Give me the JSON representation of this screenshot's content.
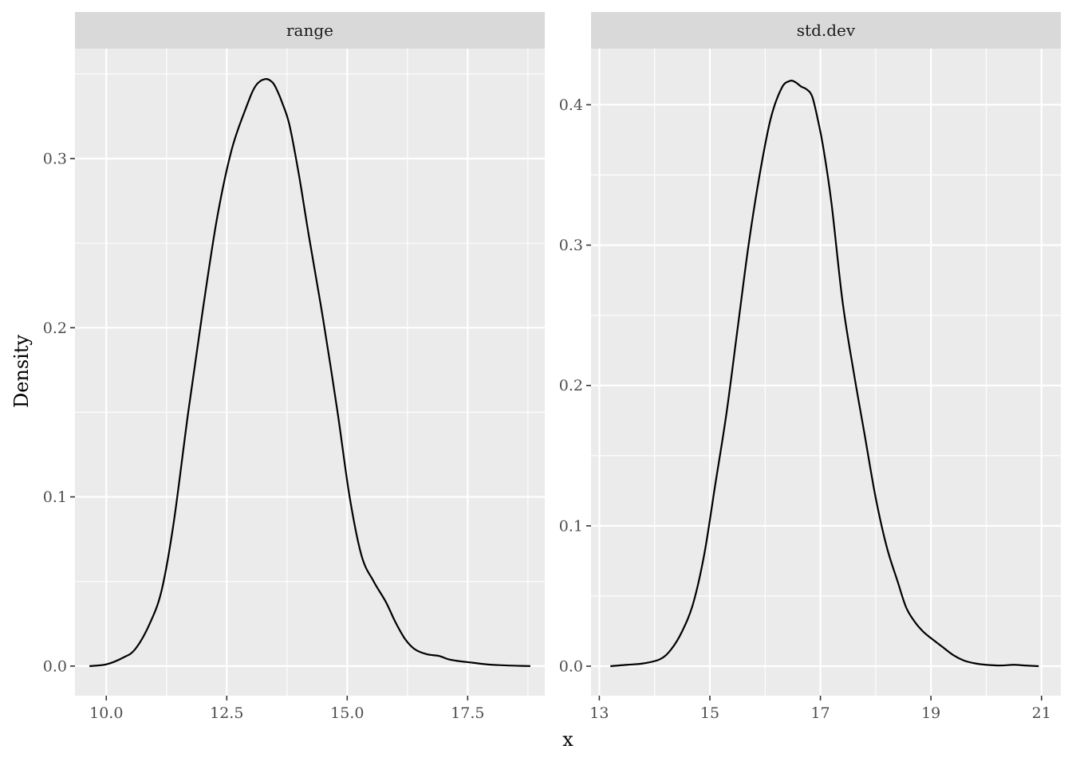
{
  "chart_data": {
    "type": "area",
    "xlabel": "x",
    "ylabel": "Density",
    "grid": true,
    "colors": {
      "panel_background": "#ebebeb",
      "strip_background": "#d9d9d9",
      "grid": "#ffffff",
      "line": "#000000"
    },
    "panels": [
      {
        "strip": "range",
        "xlim": [
          9.35,
          19.1
        ],
        "ylim": [
          -0.0175,
          0.365
        ],
        "x_ticks": [
          10.0,
          12.5,
          15.0,
          17.5
        ],
        "x_tick_labels": [
          "10.0",
          "12.5",
          "15.0",
          "17.5"
        ],
        "y_ticks": [
          0.0,
          0.1,
          0.2,
          0.3
        ],
        "y_tick_labels": [
          "0.0",
          "0.1",
          "0.2",
          "0.3"
        ],
        "series": [
          {
            "x": [
              9.65,
              10.0,
              10.35,
              10.6,
              10.9,
              11.15,
              11.4,
              11.7,
              12.0,
              12.3,
              12.6,
              12.9,
              13.1,
              13.3,
              13.45,
              13.55,
              13.65,
              13.8,
              14.0,
              14.2,
              14.5,
              14.8,
              15.05,
              15.3,
              15.55,
              15.8,
              16.0,
              16.2,
              16.4,
              16.65,
              16.9,
              17.1,
              17.3,
              17.6,
              17.9,
              18.2,
              18.5,
              18.8
            ],
            "y": [
              0.0,
              0.001,
              0.005,
              0.01,
              0.025,
              0.045,
              0.085,
              0.15,
              0.21,
              0.265,
              0.305,
              0.33,
              0.343,
              0.347,
              0.345,
              0.34,
              0.333,
              0.32,
              0.29,
              0.255,
              0.205,
              0.15,
              0.1,
              0.065,
              0.05,
              0.038,
              0.026,
              0.016,
              0.01,
              0.007,
              0.006,
              0.004,
              0.003,
              0.002,
              0.001,
              0.0005,
              0.0002,
              0.0
            ]
          }
        ]
      },
      {
        "strip": "std.dev",
        "xlim": [
          12.85,
          21.35
        ],
        "ylim": [
          -0.021,
          0.44
        ],
        "x_ticks": [
          13,
          15,
          17,
          19,
          21
        ],
        "x_tick_labels": [
          "13",
          "15",
          "17",
          "19",
          "21"
        ],
        "y_ticks": [
          0.0,
          0.1,
          0.2,
          0.3,
          0.4
        ],
        "y_tick_labels": [
          "0.0",
          "0.1",
          "0.2",
          "0.3",
          "0.4"
        ],
        "series": [
          {
            "x": [
              13.2,
              13.5,
              13.8,
              14.1,
              14.3,
              14.5,
              14.7,
              14.9,
              15.1,
              15.3,
              15.5,
              15.7,
              15.9,
              16.1,
              16.3,
              16.45,
              16.55,
              16.65,
              16.75,
              16.85,
              16.95,
              17.05,
              17.2,
              17.4,
              17.6,
              17.8,
              18.0,
              18.2,
              18.4,
              18.55,
              18.7,
              18.85,
              19.0,
              19.2,
              19.4,
              19.6,
              19.8,
              20.0,
              20.25,
              20.5,
              20.7,
              20.95
            ],
            "y": [
              0.0,
              0.001,
              0.002,
              0.005,
              0.012,
              0.025,
              0.045,
              0.08,
              0.13,
              0.18,
              0.24,
              0.3,
              0.35,
              0.39,
              0.412,
              0.417,
              0.416,
              0.413,
              0.411,
              0.406,
              0.39,
              0.37,
              0.33,
              0.26,
              0.21,
              0.165,
              0.12,
              0.085,
              0.06,
              0.042,
              0.032,
              0.025,
              0.02,
              0.014,
              0.008,
              0.004,
              0.002,
              0.001,
              0.0005,
              0.001,
              0.0005,
              0.0
            ]
          }
        ]
      }
    ]
  }
}
